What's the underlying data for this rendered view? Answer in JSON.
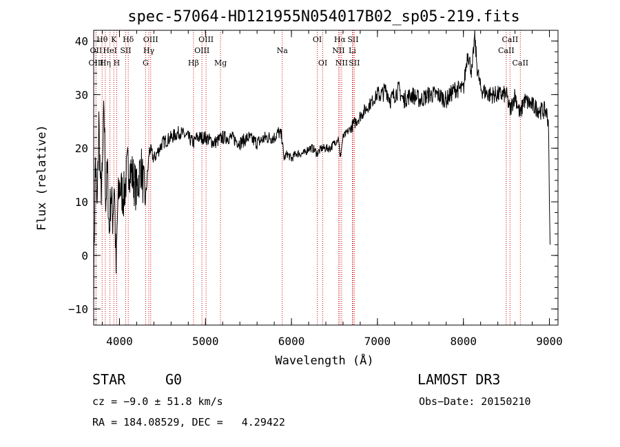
{
  "chart_data": {
    "type": "line",
    "title": "spec-57064-HD121955N054017B02_sp05-219.fits",
    "xlabel": "Wavelength (Å)",
    "ylabel": "Flux (relative)",
    "xlim": [
      3700,
      9100
    ],
    "ylim": [
      -13,
      42
    ],
    "xticks": [
      4000,
      5000,
      6000,
      7000,
      8000,
      9000
    ],
    "yticks": [
      -10,
      0,
      10,
      20,
      30,
      40
    ],
    "series": [
      {
        "name": "spectrum",
        "x": [
          3700,
          3720,
          3740,
          3760,
          3780,
          3800,
          3820,
          3840,
          3860,
          3880,
          3900,
          3920,
          3940,
          3960,
          3980,
          4000,
          4050,
          4100,
          4150,
          4200,
          4250,
          4300,
          4350,
          4400,
          4500,
          4600,
          4700,
          4800,
          4861,
          4900,
          5000,
          5100,
          5200,
          5300,
          5400,
          5500,
          5600,
          5700,
          5800,
          5850,
          5893,
          5910,
          5950,
          6000,
          6050,
          6100,
          6150,
          6200,
          6250,
          6300,
          6350,
          6400,
          6450,
          6500,
          6550,
          6563,
          6600,
          6650,
          6700,
          6750,
          6800,
          6850,
          6900,
          6950,
          7000,
          7050,
          7100,
          7150,
          7200,
          7250,
          7300,
          7400,
          7500,
          7600,
          7700,
          7800,
          7900,
          8000,
          8050,
          8100,
          8130,
          8160,
          8200,
          8300,
          8400,
          8500,
          8542,
          8600,
          8662,
          8700,
          8800,
          8900,
          8960,
          8990,
          9000,
          9010
        ],
        "y": [
          -5,
          18,
          8,
          25,
          12,
          14,
          28,
          10,
          16,
          4,
          12,
          7,
          14,
          -3,
          9,
          13,
          11,
          17,
          15,
          12,
          17,
          10,
          20,
          18,
          21,
          22,
          23,
          22,
          21,
          22,
          22,
          21,
          22,
          22,
          21,
          22,
          21,
          22,
          22,
          23,
          22,
          18,
          19,
          18,
          19,
          19,
          19,
          20,
          20,
          19,
          20,
          20,
          20,
          21,
          22,
          18,
          22,
          23,
          24,
          25,
          26,
          27,
          28,
          29,
          30,
          30,
          31,
          29,
          30,
          31,
          29,
          30,
          29,
          30,
          30,
          29,
          31,
          31,
          38,
          34,
          41,
          35,
          31,
          30,
          30,
          30,
          27,
          30,
          26,
          29,
          28,
          27,
          27,
          25,
          10,
          0
        ]
      }
    ],
    "spectral_lines": [
      {
        "label": "Hθ",
        "wave": 3798,
        "row": 1
      },
      {
        "label": "OII",
        "wave": 3727,
        "row": 2
      },
      {
        "label": "OIII",
        "wave": 3727,
        "row": 3
      },
      {
        "label": "K",
        "wave": 3934,
        "row": 1
      },
      {
        "label": "HeI",
        "wave": 3889,
        "row": 2
      },
      {
        "label": "Hη",
        "wave": 3835,
        "row": 3
      },
      {
        "label": "SII",
        "wave": 4072,
        "row": 2
      },
      {
        "label": "H",
        "wave": 3968,
        "row": 3
      },
      {
        "label": "Hδ",
        "wave": 4102,
        "row": 1
      },
      {
        "label": "OIII",
        "wave": 4363,
        "row": 1
      },
      {
        "label": "Hγ",
        "wave": 4341,
        "row": 2
      },
      {
        "label": "G",
        "wave": 4304,
        "row": 3
      },
      {
        "label": "Hβ",
        "wave": 4861,
        "row": 3
      },
      {
        "label": "OIII",
        "wave": 5007,
        "row": 1
      },
      {
        "label": "OIII",
        "wave": 4959,
        "row": 2
      },
      {
        "label": "Mg",
        "wave": 5175,
        "row": 3
      },
      {
        "label": "Na",
        "wave": 5893,
        "row": 2
      },
      {
        "label": "OI",
        "wave": 6300,
        "row": 1
      },
      {
        "label": "OI",
        "wave": 6364,
        "row": 3
      },
      {
        "label": "Hα",
        "wave": 6563,
        "row": 1
      },
      {
        "label": "SII",
        "wave": 6716,
        "row": 1
      },
      {
        "label": "NII",
        "wave": 6548,
        "row": 2
      },
      {
        "label": "Li",
        "wave": 6708,
        "row": 2
      },
      {
        "label": "NII",
        "wave": 6584,
        "row": 3
      },
      {
        "label": "SII",
        "wave": 6731,
        "row": 3
      },
      {
        "label": "CaII",
        "wave": 8542,
        "row": 1
      },
      {
        "label": "CaII",
        "wave": 8498,
        "row": 2
      },
      {
        "label": "CaII",
        "wave": 8662,
        "row": 3
      }
    ],
    "line_color": "#000000",
    "marker_color": "#cc0000"
  },
  "info": {
    "class": "STAR",
    "subclass": "G0",
    "survey": "LAMOST DR3",
    "cz": "cz = −9.0 ± 51.8 km/s",
    "obs_date": "Obs−Date: 20150210",
    "coords": "RA = 184.08529, DEC =   4.29422"
  }
}
